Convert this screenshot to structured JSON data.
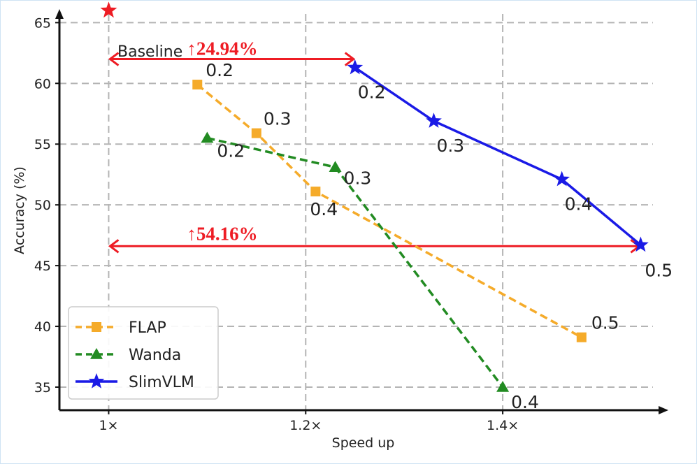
{
  "chart_data": {
    "type": "line",
    "xlabel": "Speed up",
    "ylabel": "Accuracy (%)",
    "xlim": [
      0.95,
      1.5667
    ],
    "ylim": [
      33.1,
      66.0
    ],
    "x_ticks": [
      1.0,
      1.2,
      1.4
    ],
    "x_tick_labels": [
      "1×",
      "1.2×",
      "1.4×"
    ],
    "y_ticks": [
      35,
      40,
      45,
      50,
      55,
      60,
      65
    ],
    "y_tick_labels": [
      "35",
      "40",
      "45",
      "50",
      "55",
      "60",
      "65"
    ],
    "grid": true,
    "legend_position": "lower-left",
    "colors": {
      "FLAP": "#f5ab2a",
      "Wanda": "#228b22",
      "SlimVLM": "#1a1ae6",
      "baseline": "#ee1c24",
      "annotation": "#ee1c24"
    },
    "baseline": {
      "name": "Baseline",
      "x": 1.0,
      "y": 66.0
    },
    "series": [
      {
        "name": "FLAP",
        "marker": "square",
        "line_style": "dashed",
        "x": [
          1.09,
          1.15,
          1.21,
          1.48
        ],
        "y": [
          59.9,
          55.9,
          51.1,
          39.1
        ],
        "point_labels": [
          "0.2",
          "0.3",
          "0.4",
          "0.5"
        ]
      },
      {
        "name": "Wanda",
        "marker": "triangle",
        "line_style": "dashed",
        "x": [
          1.1,
          1.23,
          1.4
        ],
        "y": [
          55.5,
          53.1,
          35.0
        ],
        "point_labels": [
          "0.2",
          "0.3",
          "0.4"
        ]
      },
      {
        "name": "SlimVLM",
        "marker": "star",
        "line_style": "solid",
        "x": [
          1.25,
          1.33,
          1.46,
          1.54
        ],
        "y": [
          61.3,
          56.9,
          52.1,
          46.7
        ],
        "point_labels": [
          "0.2",
          "0.3",
          "0.4",
          "0.5"
        ]
      }
    ],
    "annotations": [
      {
        "text": "↑24.94%",
        "x_from": 1.0,
        "x_to": 1.25,
        "y": 62.0
      },
      {
        "text": "↑54.16%",
        "x_from": 1.0,
        "x_to": 1.54,
        "y": 46.6
      }
    ]
  }
}
